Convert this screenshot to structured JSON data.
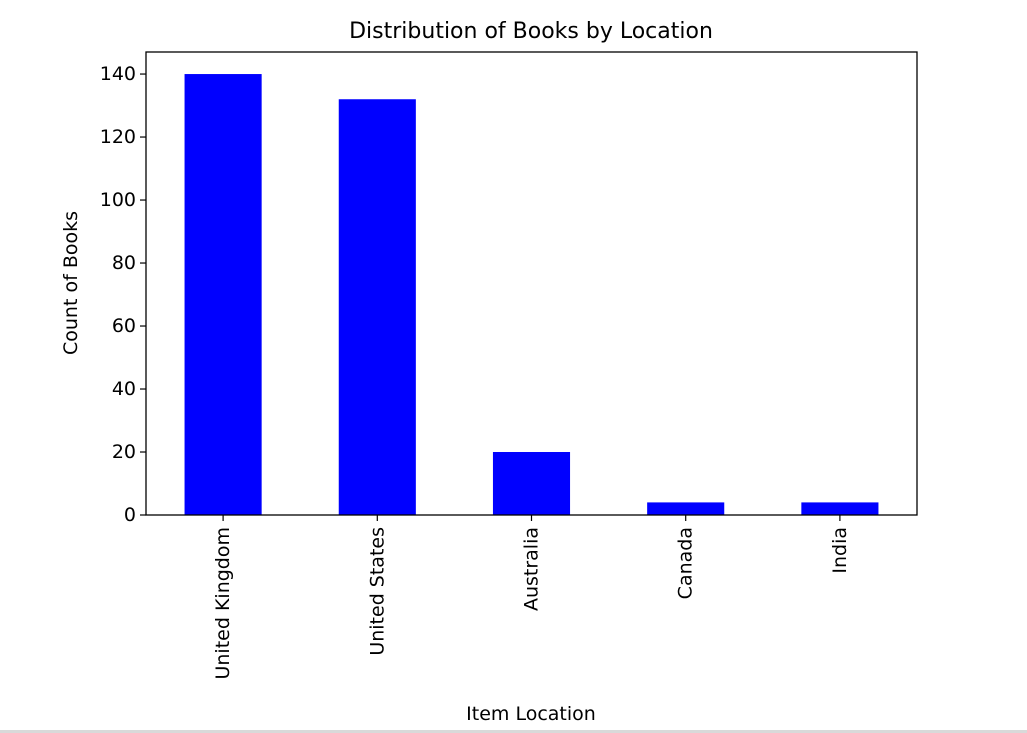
{
  "chart_data": {
    "type": "bar",
    "title": "Distribution of Books by Location",
    "xlabel": "Item Location",
    "ylabel": "Count of Books",
    "categories": [
      "United Kingdom",
      "United States",
      "Australia",
      "Canada",
      "India"
    ],
    "values": [
      140,
      132,
      20,
      4,
      4
    ],
    "ylim": [
      0,
      147
    ],
    "yticks": [
      0,
      20,
      40,
      60,
      80,
      100,
      120,
      140
    ],
    "bar_color": "#0000ff",
    "grid": false,
    "legend": "none"
  }
}
